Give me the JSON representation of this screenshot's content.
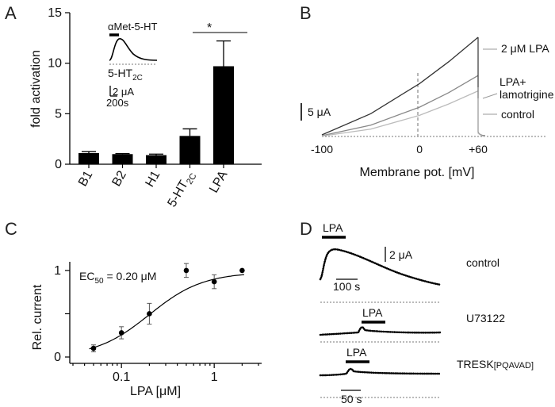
{
  "panels": {
    "A": {
      "letter": "A",
      "inset": {
        "drug": "αMet-5-HT",
        "receptor": "5-HT",
        "receptor_sub": "2C",
        "scale_current": "2 μA",
        "scale_time": "200s"
      },
      "significance": "*"
    },
    "B": {
      "letter": "B",
      "voltage_label": "0",
      "scale_current": "5 μA"
    },
    "C": {
      "letter": "C",
      "ec50_main": "EC",
      "ec50_sub": "50",
      "ec50_value": " = 0.20 μM"
    },
    "D": {
      "letter": "D",
      "drug_label": "LPA",
      "scale_current": "2 μA",
      "scale_time_top": "100 s",
      "scale_time_bottom": "50 s",
      "traces": [
        {
          "label": "control"
        },
        {
          "label": "U73122"
        },
        {
          "label": "TRESK",
          "label_sub": "[PQAVAD]"
        }
      ]
    }
  },
  "chart_data": [
    {
      "type": "bar",
      "panel": "A",
      "ylabel": "fold activation",
      "ylim": [
        0,
        15
      ],
      "yticks": [
        0,
        5,
        10,
        15
      ],
      "categories": [
        "B1",
        "B2",
        "H1",
        "5-HT2C",
        "LPA"
      ],
      "category_labels": [
        {
          "main": "B1",
          "sub": ""
        },
        {
          "main": "B2",
          "sub": ""
        },
        {
          "main": "H1",
          "sub": ""
        },
        {
          "main": "5-HT",
          "sub": "2C"
        },
        {
          "main": "LPA",
          "sub": ""
        }
      ],
      "values": [
        1.1,
        1.0,
        0.9,
        2.8,
        9.7
      ],
      "errors": [
        0.15,
        0.05,
        0.1,
        0.7,
        2.5
      ]
    },
    {
      "type": "line",
      "panel": "B",
      "xlabel": "Membrane pot. [mV]",
      "xlim": [
        -100,
        60
      ],
      "xticks": [
        -100,
        0,
        60
      ],
      "xtick_labels": [
        "-100",
        "0",
        "+60"
      ],
      "ylim": [
        0,
        14
      ],
      "series": [
        {
          "name": "2 μM LPA",
          "color": "#333333",
          "x": [
            -100,
            -50,
            0,
            30,
            60
          ],
          "y": [
            0.2,
            2.8,
            6.5,
            9.2,
            12.2
          ]
        },
        {
          "name": "LPA+ lamotrigine",
          "color": "#888888",
          "x": [
            -100,
            -50,
            0,
            30,
            60
          ],
          "y": [
            0.1,
            1.4,
            3.6,
            5.4,
            7.5
          ]
        },
        {
          "name": "control",
          "color": "#bbbbbb",
          "x": [
            -100,
            -50,
            0,
            30,
            60
          ],
          "y": [
            0.05,
            0.9,
            2.6,
            4.0,
            5.6
          ]
        }
      ]
    },
    {
      "type": "scatter",
      "panel": "C",
      "xlabel": "LPA [μM]",
      "ylabel": "Rel. current",
      "xscale": "log",
      "xlim": [
        0.03,
        3
      ],
      "ylim": [
        0,
        1.1
      ],
      "xticks": [
        0.1,
        1
      ],
      "xtick_labels": [
        "0.1",
        "1"
      ],
      "yticks": [
        0,
        0.5,
        1
      ],
      "ytick_labels": [
        "0",
        "",
        "1"
      ],
      "x": [
        0.05,
        0.1,
        0.2,
        0.5,
        1,
        2
      ],
      "y": [
        0.1,
        0.28,
        0.5,
        1.0,
        0.87,
        1.0
      ],
      "errors": [
        0.04,
        0.07,
        0.12,
        0.08,
        0.08,
        0.0
      ],
      "fit": {
        "ec50": 0.2,
        "hill": 1.5,
        "top": 0.98,
        "bottom": 0
      }
    }
  ]
}
